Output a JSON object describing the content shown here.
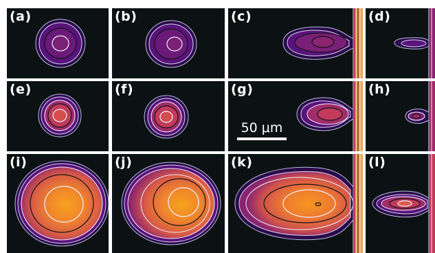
{
  "panels": [
    {
      "label": "(a)"
    },
    {
      "label": "(b)"
    },
    {
      "label": "(c)"
    },
    {
      "label": "(d)"
    },
    {
      "label": "(e)"
    },
    {
      "label": "(f)"
    },
    {
      "label": "(g)"
    },
    {
      "label": "(h)"
    },
    {
      "label": "(i)"
    },
    {
      "label": "(j)"
    },
    {
      "label": "(k)"
    },
    {
      "label": "(l)"
    }
  ],
  "scale_bar": {
    "label": "50 μm"
  },
  "colors": {
    "background": "#0c1113",
    "separator": "#ffffff",
    "colormap": [
      "#2a0b4a",
      "#5a137c",
      "#8a2470",
      "#c23b5a",
      "#e9633a",
      "#f7a21d"
    ],
    "contour_light": "#e8e8f4",
    "contour_dark": "#141418"
  }
}
